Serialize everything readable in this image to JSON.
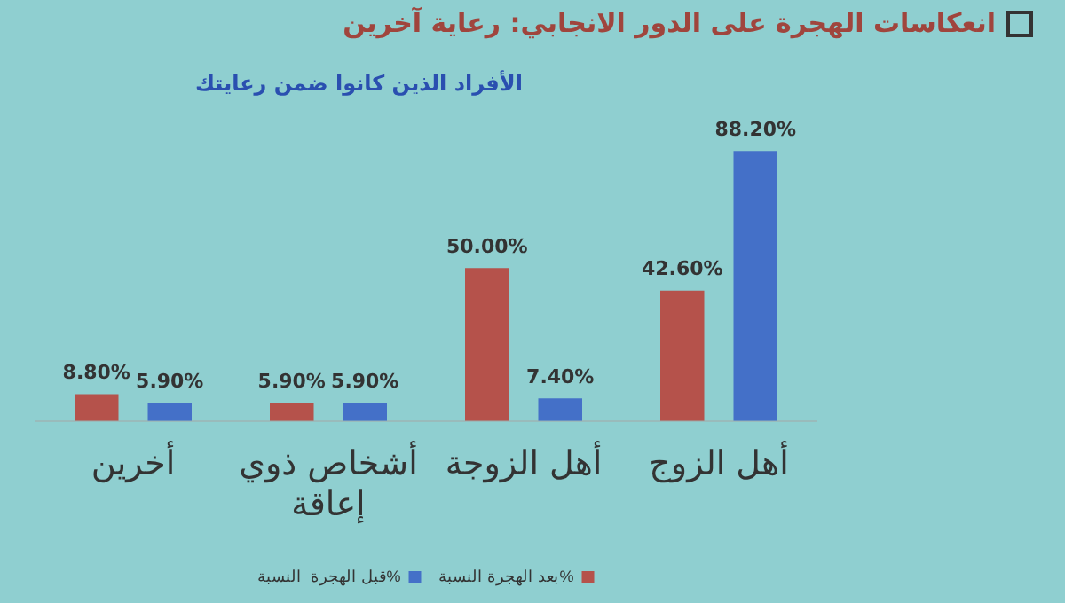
{
  "chart_data": {
    "type": "bar",
    "title": "انعكاسات  الهجرة على الدور الانجابي: رعاية آخرين",
    "subtitle": "الأفراد الذين كانوا ضمن رعايتك",
    "categories": [
      "أخرين",
      "أشخاص ذوي إعاقة",
      "أهل الزوجة",
      "أهل الزوج"
    ],
    "series": [
      {
        "name": "بعد الهجرة النسبة%",
        "color": "#b5524b",
        "values": [
          8.8,
          5.9,
          50,
          42.6
        ],
        "value_labels": [
          "8.80%",
          "5.90%",
          "50.00%",
          "42.60%"
        ]
      },
      {
        "name": "قبل الهجرة  النسبة%",
        "color": "#4470c8",
        "values": [
          5.9,
          5.9,
          7.4,
          88.2
        ],
        "value_labels": [
          "5.90%",
          "5.90%",
          "7.40%",
          "88.20%"
        ]
      }
    ],
    "legend": "bottom",
    "grid": false
  }
}
